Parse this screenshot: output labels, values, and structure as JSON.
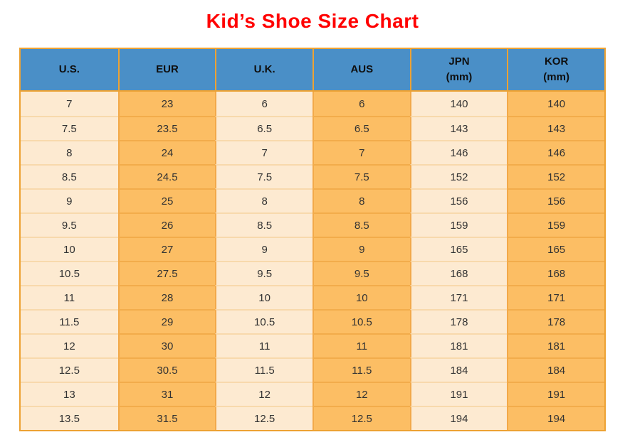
{
  "title": "Kid’s Shoe Size Chart",
  "colors": {
    "title_red": "#FF0000",
    "header_blue": "#4A8FC7",
    "header_text": "#0F0F0F",
    "cell_text": "#333333",
    "col_light_bg": "#FDEAD1",
    "col_orange_bg": "#FCBE64",
    "row_line_light": "#F8D9AC",
    "row_line_orange": "#F2AC4B",
    "grid_vline": "#F2A94A",
    "border_orange": "#EDA233"
  },
  "chart_data": {
    "type": "table",
    "title": "Kid’s Shoe Size Chart",
    "columns": [
      {
        "id": "us",
        "label_lines": [
          "U.S."
        ]
      },
      {
        "id": "eur",
        "label_lines": [
          "EUR"
        ]
      },
      {
        "id": "uk",
        "label_lines": [
          "U.K."
        ]
      },
      {
        "id": "aus",
        "label_lines": [
          "AUS"
        ]
      },
      {
        "id": "jpn",
        "label_lines": [
          "JPN",
          "(mm)"
        ]
      },
      {
        "id": "kor",
        "label_lines": [
          "KOR",
          "(mm)"
        ]
      }
    ],
    "rows": [
      [
        "7",
        "23",
        "6",
        "6",
        "140",
        "140"
      ],
      [
        "7.5",
        "23.5",
        "6.5",
        "6.5",
        "143",
        "143"
      ],
      [
        "8",
        "24",
        "7",
        "7",
        "146",
        "146"
      ],
      [
        "8.5",
        "24.5",
        "7.5",
        "7.5",
        "152",
        "152"
      ],
      [
        "9",
        "25",
        "8",
        "8",
        "156",
        "156"
      ],
      [
        "9.5",
        "26",
        "8.5",
        "8.5",
        "159",
        "159"
      ],
      [
        "10",
        "27",
        "9",
        "9",
        "165",
        "165"
      ],
      [
        "10.5",
        "27.5",
        "9.5",
        "9.5",
        "168",
        "168"
      ],
      [
        "11",
        "28",
        "10",
        "10",
        "171",
        "171"
      ],
      [
        "11.5",
        "29",
        "10.5",
        "10.5",
        "178",
        "178"
      ],
      [
        "12",
        "30",
        "11",
        "11",
        "181",
        "181"
      ],
      [
        "12.5",
        "30.5",
        "11.5",
        "11.5",
        "184",
        "184"
      ],
      [
        "13",
        "31",
        "12",
        "12",
        "191",
        "191"
      ],
      [
        "13.5",
        "31.5",
        "12.5",
        "12.5",
        "194",
        "194"
      ]
    ]
  }
}
